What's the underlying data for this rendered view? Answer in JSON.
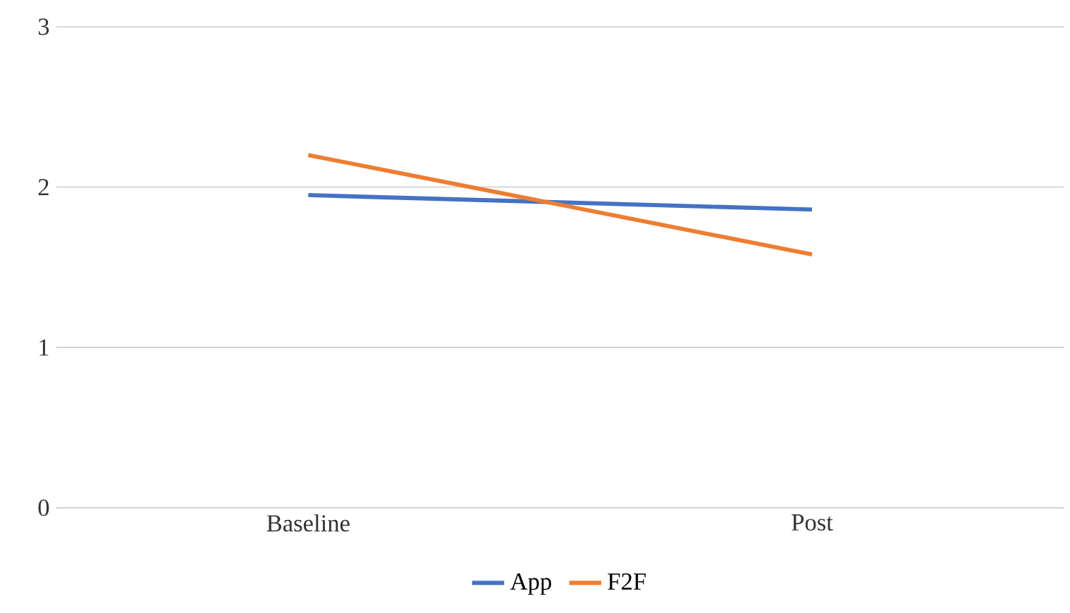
{
  "chart_data": {
    "type": "line",
    "categories": [
      "Baseline",
      "Post"
    ],
    "series": [
      {
        "name": "App",
        "color": "#4472c4",
        "values": [
          1.95,
          1.86
        ]
      },
      {
        "name": "F2F",
        "color": "#ed7d31",
        "values": [
          2.2,
          1.58
        ]
      }
    ],
    "ylim": [
      0,
      3
    ],
    "yticks": [
      0,
      1,
      2,
      3
    ],
    "grid": "y",
    "legend": "bottom",
    "marker": "none",
    "line_style": "solid"
  }
}
